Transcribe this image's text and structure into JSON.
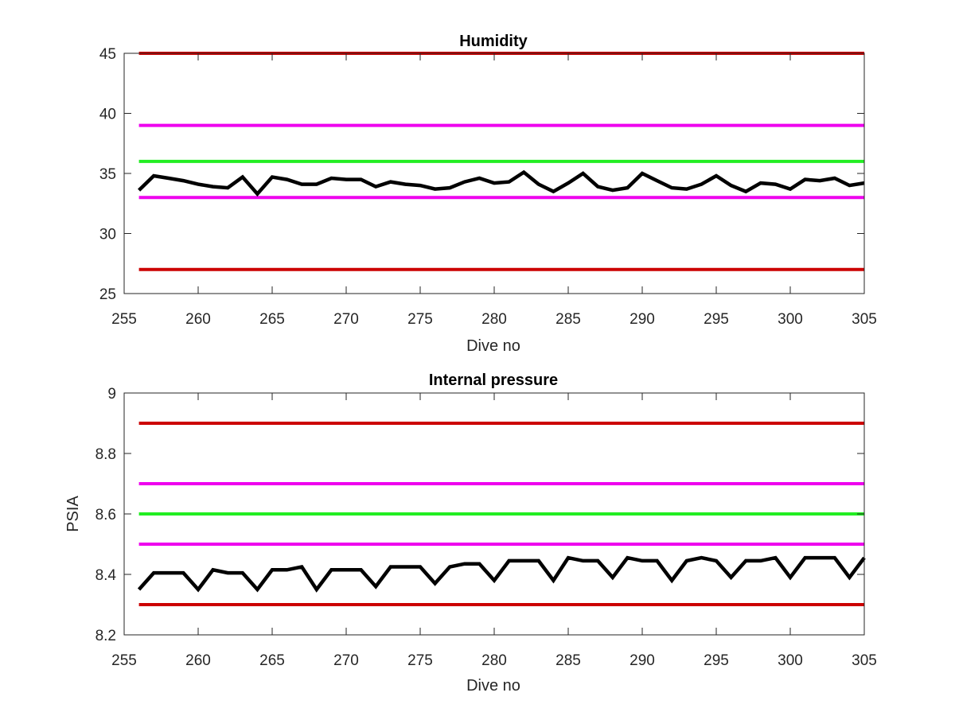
{
  "colors": {
    "background": "#ffffff",
    "axis": "#262626",
    "data_line": "#000000",
    "outer_limit": "#cc0000",
    "inner_limit": "#ee00ee",
    "nominal": "#22ee22"
  },
  "chart_data": [
    {
      "type": "line",
      "title": "Humidity",
      "xlabel": "Dive no",
      "ylabel": "",
      "xlim": [
        255,
        305
      ],
      "ylim": [
        25,
        45
      ],
      "xticks": [
        255,
        260,
        265,
        270,
        275,
        280,
        285,
        290,
        295,
        300,
        305
      ],
      "yticks": [
        25,
        30,
        35,
        40,
        45
      ],
      "grid": false,
      "reference_lines": [
        {
          "y": 45,
          "x_range": [
            256,
            305
          ],
          "color_key": "outer_limit"
        },
        {
          "y": 39,
          "x_range": [
            256,
            305
          ],
          "color_key": "inner_limit"
        },
        {
          "y": 36,
          "x_range": [
            256,
            305
          ],
          "color_key": "nominal"
        },
        {
          "y": 33,
          "x_range": [
            256,
            305
          ],
          "color_key": "inner_limit"
        },
        {
          "y": 27,
          "x_range": [
            256,
            305
          ],
          "color_key": "outer_limit"
        }
      ],
      "series": [
        {
          "color_key": "data_line",
          "x": [
            256,
            257,
            258,
            259,
            260,
            261,
            262,
            263,
            264,
            265,
            266,
            267,
            268,
            269,
            270,
            271,
            272,
            273,
            274,
            275,
            276,
            277,
            278,
            279,
            280,
            281,
            282,
            283,
            284,
            285,
            286,
            287,
            288,
            289,
            290,
            291,
            292,
            293,
            294,
            295,
            296,
            297,
            298,
            299,
            300,
            301,
            302,
            303,
            304,
            305
          ],
          "y": [
            33.6,
            34.8,
            34.6,
            34.4,
            34.1,
            33.9,
            33.8,
            34.7,
            33.3,
            34.7,
            34.5,
            34.1,
            34.1,
            34.6,
            34.5,
            34.5,
            33.9,
            34.3,
            34.1,
            34.0,
            33.7,
            33.8,
            34.3,
            34.6,
            34.2,
            34.3,
            35.1,
            34.1,
            33.5,
            34.2,
            35.0,
            33.9,
            33.6,
            33.8,
            35.0,
            34.4,
            33.8,
            33.7,
            34.1,
            34.8,
            34.0,
            33.5,
            34.2,
            34.1,
            33.7,
            34.5,
            34.4,
            34.6,
            34.0,
            34.2
          ]
        }
      ]
    },
    {
      "type": "line",
      "title": "Internal pressure",
      "xlabel": "Dive no",
      "ylabel": "PSIA",
      "xlim": [
        255,
        305
      ],
      "ylim": [
        8.2,
        9.0
      ],
      "xticks": [
        255,
        260,
        265,
        270,
        275,
        280,
        285,
        290,
        295,
        300,
        305
      ],
      "yticks": [
        8.2,
        8.4,
        8.6,
        8.8,
        9.0
      ],
      "ytick_labels": [
        "8.2",
        "8.4",
        "8.6",
        "8.8",
        "9"
      ],
      "grid": false,
      "reference_lines": [
        {
          "y": 8.9,
          "x_range": [
            256,
            305
          ],
          "color_key": "outer_limit"
        },
        {
          "y": 8.7,
          "x_range": [
            256,
            305
          ],
          "color_key": "inner_limit"
        },
        {
          "y": 8.6,
          "x_range": [
            256,
            305
          ],
          "color_key": "nominal"
        },
        {
          "y": 8.5,
          "x_range": [
            256,
            305
          ],
          "color_key": "inner_limit"
        },
        {
          "y": 8.3,
          "x_range": [
            256,
            305
          ],
          "color_key": "outer_limit"
        }
      ],
      "series": [
        {
          "color_key": "data_line",
          "x": [
            256,
            257,
            258,
            259,
            260,
            261,
            262,
            263,
            264,
            265,
            266,
            267,
            268,
            269,
            270,
            271,
            272,
            273,
            274,
            275,
            276,
            277,
            278,
            279,
            280,
            281,
            282,
            283,
            284,
            285,
            286,
            287,
            288,
            289,
            290,
            291,
            292,
            293,
            294,
            295,
            296,
            297,
            298,
            299,
            300,
            301,
            302,
            303,
            304,
            305
          ],
          "y": [
            8.35,
            8.405,
            8.405,
            8.405,
            8.35,
            8.415,
            8.405,
            8.405,
            8.35,
            8.415,
            8.415,
            8.425,
            8.35,
            8.415,
            8.415,
            8.415,
            8.36,
            8.425,
            8.425,
            8.425,
            8.37,
            8.425,
            8.435,
            8.435,
            8.38,
            8.445,
            8.445,
            8.445,
            8.38,
            8.455,
            8.445,
            8.445,
            8.39,
            8.455,
            8.445,
            8.445,
            8.38,
            8.445,
            8.455,
            8.445,
            8.39,
            8.445,
            8.445,
            8.455,
            8.39,
            8.455,
            8.455,
            8.455,
            8.39,
            8.455
          ]
        }
      ]
    }
  ]
}
